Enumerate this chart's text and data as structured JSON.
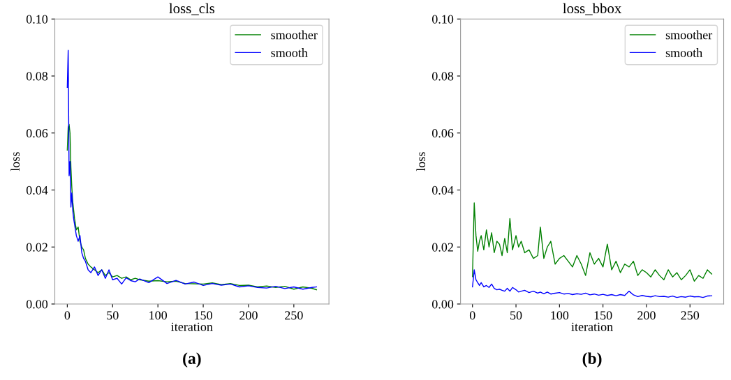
{
  "chart_data": [
    {
      "type": "line",
      "title": "loss_cls",
      "xlabel": "iteration",
      "ylabel": "loss",
      "legend": "top right",
      "grid": false,
      "annotations": [
        "(a)"
      ],
      "xlim": [
        -13.75,
        288.75
      ],
      "xticks": [
        0,
        50,
        100,
        150,
        200,
        250
      ],
      "ylim": [
        0,
        0.1
      ],
      "yticks": [
        {
          "value": 0,
          "label": "0.00"
        },
        {
          "value": 0.02,
          "label": "0.02"
        },
        {
          "value": 0.04,
          "label": "0.04"
        },
        {
          "value": 0.06,
          "label": "0.06"
        },
        {
          "value": 0.08,
          "label": "0.08"
        },
        {
          "value": 0.1,
          "label": "0.10"
        }
      ],
      "x": [
        0,
        1,
        2,
        3,
        4,
        5,
        6,
        7,
        8,
        10,
        12,
        14,
        16,
        18,
        20,
        23,
        26,
        30,
        34,
        38,
        42,
        46,
        50,
        55,
        60,
        65,
        70,
        75,
        80,
        90,
        100,
        110,
        120,
        130,
        140,
        150,
        160,
        170,
        180,
        190,
        200,
        210,
        220,
        230,
        240,
        250,
        260,
        270,
        275
      ],
      "series": [
        {
          "name": "smoother",
          "color": "#008000",
          "values": [
            0.054,
            0.062,
            0.063,
            0.06,
            0.048,
            0.041,
            0.036,
            0.033,
            0.03,
            0.026,
            0.027,
            0.022,
            0.02,
            0.019,
            0.016,
            0.014,
            0.013,
            0.012,
            0.011,
            0.012,
            0.01,
            0.011,
            0.0095,
            0.01,
            0.009,
            0.0095,
            0.0085,
            0.009,
            0.0085,
            0.008,
            0.0082,
            0.0078,
            0.008,
            0.0072,
            0.0071,
            0.007,
            0.0074,
            0.0068,
            0.0072,
            0.0065,
            0.0066,
            0.006,
            0.0063,
            0.0058,
            0.0062,
            0.0052,
            0.006,
            0.0055,
            0.005
          ]
        },
        {
          "name": "smooth",
          "color": "#0000ff",
          "values": [
            0.076,
            0.089,
            0.045,
            0.05,
            0.034,
            0.039,
            0.033,
            0.03,
            0.028,
            0.024,
            0.022,
            0.024,
            0.018,
            0.016,
            0.015,
            0.012,
            0.011,
            0.013,
            0.01,
            0.012,
            0.009,
            0.012,
            0.0085,
            0.009,
            0.007,
            0.0092,
            0.0082,
            0.0078,
            0.0088,
            0.0075,
            0.0095,
            0.0072,
            0.0083,
            0.007,
            0.0077,
            0.0065,
            0.0072,
            0.0066,
            0.007,
            0.006,
            0.0064,
            0.0058,
            0.0056,
            0.0062,
            0.0054,
            0.006,
            0.0052,
            0.0058,
            0.006
          ]
        }
      ]
    },
    {
      "type": "line",
      "title": "loss_bbox",
      "xlabel": "iteration",
      "ylabel": "loss",
      "legend": "top right",
      "grid": false,
      "annotations": [
        "(b)"
      ],
      "xlim": [
        -13.75,
        288.75
      ],
      "xticks": [
        0,
        50,
        100,
        150,
        200,
        250
      ],
      "ylim": [
        0,
        0.1
      ],
      "yticks": [
        {
          "value": 0,
          "label": "0.00"
        },
        {
          "value": 0.02,
          "label": "0.02"
        },
        {
          "value": 0.04,
          "label": "0.04"
        },
        {
          "value": 0.06,
          "label": "0.06"
        },
        {
          "value": 0.08,
          "label": "0.08"
        },
        {
          "value": 0.1,
          "label": "0.10"
        }
      ],
      "x": [
        0,
        2,
        4,
        6,
        8,
        10,
        13,
        16,
        19,
        22,
        25,
        28,
        31,
        34,
        37,
        40,
        43,
        46,
        50,
        53,
        56,
        60,
        65,
        70,
        75,
        78,
        82,
        86,
        90,
        95,
        100,
        105,
        110,
        115,
        120,
        125,
        130,
        135,
        140,
        145,
        150,
        155,
        160,
        165,
        170,
        175,
        180,
        185,
        190,
        195,
        200,
        205,
        210,
        215,
        220,
        225,
        230,
        235,
        240,
        245,
        250,
        255,
        260,
        265,
        270,
        275
      ],
      "series": [
        {
          "name": "smoother",
          "color": "#008000",
          "values": [
            0.0096,
            0.0355,
            0.024,
            0.0185,
            0.022,
            0.024,
            0.019,
            0.026,
            0.02,
            0.025,
            0.018,
            0.022,
            0.021,
            0.017,
            0.023,
            0.018,
            0.03,
            0.019,
            0.024,
            0.02,
            0.022,
            0.018,
            0.019,
            0.016,
            0.017,
            0.027,
            0.016,
            0.02,
            0.022,
            0.014,
            0.016,
            0.017,
            0.015,
            0.013,
            0.017,
            0.014,
            0.01,
            0.018,
            0.014,
            0.016,
            0.013,
            0.021,
            0.012,
            0.015,
            0.011,
            0.014,
            0.013,
            0.015,
            0.01,
            0.012,
            0.011,
            0.0095,
            0.012,
            0.01,
            0.0085,
            0.012,
            0.0095,
            0.011,
            0.0085,
            0.01,
            0.012,
            0.008,
            0.01,
            0.009,
            0.012,
            0.0105
          ]
        },
        {
          "name": "smooth",
          "color": "#0000ff",
          "values": [
            0.006,
            0.012,
            0.0085,
            0.0075,
            0.0065,
            0.0075,
            0.006,
            0.0065,
            0.0058,
            0.007,
            0.0055,
            0.005,
            0.0052,
            0.0048,
            0.0045,
            0.0055,
            0.0045,
            0.0058,
            0.005,
            0.0042,
            0.0045,
            0.0048,
            0.004,
            0.0045,
            0.0038,
            0.0042,
            0.0036,
            0.0042,
            0.0035,
            0.0038,
            0.004,
            0.0035,
            0.0037,
            0.0033,
            0.0036,
            0.0034,
            0.0038,
            0.0032,
            0.0035,
            0.0031,
            0.0034,
            0.003,
            0.0033,
            0.0029,
            0.0033,
            0.003,
            0.0045,
            0.0032,
            0.0026,
            0.003,
            0.0027,
            0.0025,
            0.0029,
            0.0026,
            0.0027,
            0.0024,
            0.0028,
            0.0023,
            0.0026,
            0.0024,
            0.0028,
            0.0025,
            0.0026,
            0.0023,
            0.0028,
            0.0029
          ]
        }
      ]
    }
  ]
}
